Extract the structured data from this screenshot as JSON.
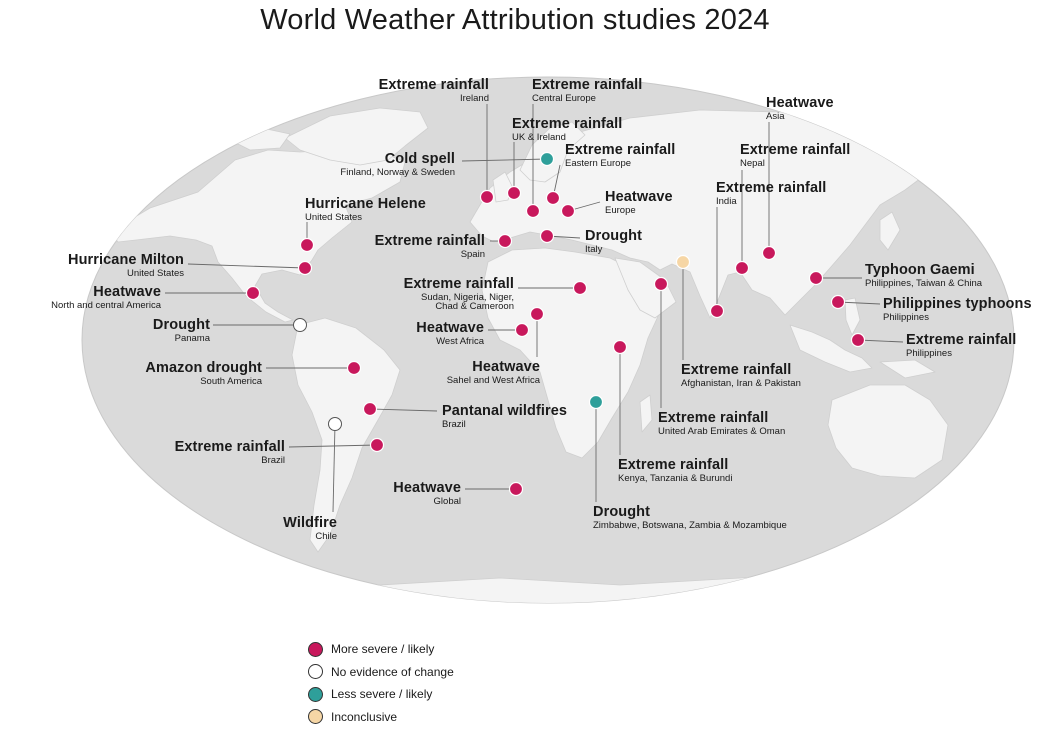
{
  "title": "World  Weather Attribution studies 2024",
  "colors": {
    "more": "#c8185c",
    "none": "#ffffff",
    "less": "#2e9f9a",
    "inconclusive": "#f6d6a5",
    "ocean": "#dadada",
    "land": "#f4f4f4"
  },
  "legend": [
    {
      "key": "more",
      "label": "More severe / likely"
    },
    {
      "key": "none",
      "label": "No evidence of change"
    },
    {
      "key": "less",
      "label": "Less severe / likely"
    },
    {
      "key": "inconclusive",
      "label": "Inconclusive"
    }
  ],
  "studies": [
    {
      "id": "ireland",
      "event": "Extreme rainfall",
      "region": "Ireland",
      "result": "more"
    },
    {
      "id": "central-europe",
      "event": "Extreme rainfall",
      "region": "Central Europe",
      "result": "more"
    },
    {
      "id": "uk-ireland",
      "event": "Extreme rainfall",
      "region": "UK & Ireland",
      "result": "more"
    },
    {
      "id": "cold-spell",
      "event": "Cold spell",
      "region": "Finland, Norway & Sweden",
      "result": "less"
    },
    {
      "id": "eastern-europe",
      "event": "Extreme rainfall",
      "region": "Eastern Europe",
      "result": "more"
    },
    {
      "id": "heatwave-europe",
      "event": "Heatwave",
      "region": "Europe",
      "result": "more"
    },
    {
      "id": "spain",
      "event": "Extreme rainfall",
      "region": "Spain",
      "result": "more"
    },
    {
      "id": "drought-italy",
      "event": "Drought",
      "region": "Italy",
      "result": "more"
    },
    {
      "id": "heatwave-asia",
      "event": "Heatwave",
      "region": "Asia",
      "result": "more"
    },
    {
      "id": "nepal",
      "event": "Extreme rainfall",
      "region": "Nepal",
      "result": "more"
    },
    {
      "id": "india",
      "event": "Extreme rainfall",
      "region": "India",
      "result": "more"
    },
    {
      "id": "helene",
      "event": "Hurricane Helene",
      "region": "United States",
      "result": "more"
    },
    {
      "id": "milton",
      "event": "Hurricane Milton",
      "region": "United States",
      "result": "more"
    },
    {
      "id": "heatwave-nca",
      "event": "Heatwave",
      "region": "North and central America",
      "result": "more"
    },
    {
      "id": "drought-panama",
      "event": "Drought",
      "region": "Panama",
      "result": "none"
    },
    {
      "id": "amazon",
      "event": "Amazon drought",
      "region": "South America",
      "result": "more"
    },
    {
      "id": "pantanal",
      "event": "Pantanal wildfires",
      "region": "Brazil",
      "result": "more"
    },
    {
      "id": "brazil-rain",
      "event": "Extreme rainfall",
      "region": "Brazil",
      "result": "more"
    },
    {
      "id": "wildfire-chile",
      "event": "Wildfire",
      "region": "Chile",
      "result": "none"
    },
    {
      "id": "sudan",
      "event": "Extreme rainfall",
      "region": "Sudan, Nigeria, Niger,\nChad & Cameroon",
      "result": "more"
    },
    {
      "id": "heatwave-wa",
      "event": "Heatwave",
      "region": "West Africa",
      "result": "more"
    },
    {
      "id": "heatwave-sahel",
      "event": "Heatwave",
      "region": "Sahel and West Africa",
      "result": "more"
    },
    {
      "id": "afghanistan",
      "event": "Extreme rainfall",
      "region": "Afghanistan, Iran & Pakistan",
      "result": "inconclusive"
    },
    {
      "id": "uae",
      "event": "Extreme rainfall",
      "region": "United Arab Emirates & Oman",
      "result": "more"
    },
    {
      "id": "kenya",
      "event": "Extreme rainfall",
      "region": "Kenya, Tanzania & Burundi",
      "result": "more"
    },
    {
      "id": "drought-southern-africa",
      "event": "Drought",
      "region": "Zimbabwe, Botswana, Zambia & Mozambique",
      "result": "less"
    },
    {
      "id": "heatwave-global",
      "event": "Heatwave",
      "region": "Global",
      "result": "more"
    },
    {
      "id": "gaemi",
      "event": "Typhoon Gaemi",
      "region": "Philippines, Taiwan & China",
      "result": "more"
    },
    {
      "id": "ph-typhoons",
      "event": "Philippines typhoons",
      "region": "Philippines",
      "result": "more"
    },
    {
      "id": "ph-rain",
      "event": "Extreme rainfall",
      "region": "Philippines",
      "result": "more"
    }
  ]
}
